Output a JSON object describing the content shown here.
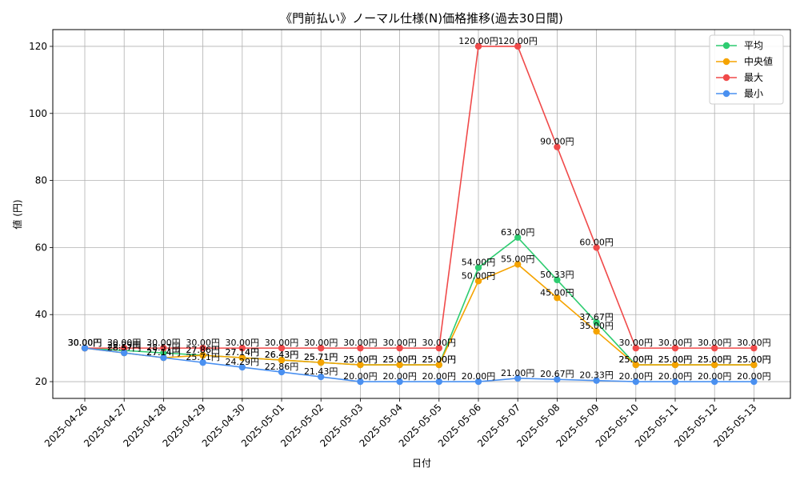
{
  "chart_data": {
    "type": "line",
    "title": "《門前払い》ノーマル仕様(N)価格推移(過去30日間)",
    "xlabel": "日付",
    "ylabel": "値 (円)",
    "ylim": [
      15,
      125
    ],
    "yticks": [
      20,
      40,
      60,
      80,
      100,
      120
    ],
    "grid": true,
    "legend_position": "top-right",
    "value_suffix": "円",
    "categories": [
      "2025-04-26",
      "2025-04-27",
      "2025-04-28",
      "2025-04-29",
      "2025-04-30",
      "2025-05-01",
      "2025-05-02",
      "2025-05-03",
      "2025-05-04",
      "2025-05-05",
      "2025-05-06",
      "2025-05-07",
      "2025-05-08",
      "2025-05-09",
      "2025-05-10",
      "2025-05-11",
      "2025-05-12",
      "2025-05-13"
    ],
    "series": [
      {
        "name": "平均",
        "color": "#2ecc71",
        "values": [
          30.0,
          29.29,
          28.57,
          27.86,
          27.14,
          26.43,
          25.71,
          25.0,
          25.0,
          25.0,
          54.0,
          63.0,
          50.33,
          37.67,
          25.0,
          25.0,
          25.0,
          25.0
        ]
      },
      {
        "name": "中央値",
        "color": "#f5a300",
        "values": [
          30.0,
          28.57,
          27.14,
          27.86,
          27.14,
          26.43,
          25.71,
          25.0,
          25.0,
          25.0,
          50.0,
          55.0,
          45.0,
          35.0,
          25.0,
          25.0,
          25.0,
          25.0
        ]
      },
      {
        "name": "最大",
        "color": "#f04a4a",
        "values": [
          30.0,
          30.0,
          30.0,
          30.0,
          30.0,
          30.0,
          30.0,
          30.0,
          30.0,
          30.0,
          120.0,
          120.0,
          90.0,
          60.0,
          30.0,
          30.0,
          30.0,
          30.0
        ]
      },
      {
        "name": "最小",
        "color": "#4a90f0",
        "values": [
          30.0,
          28.57,
          27.14,
          25.71,
          24.29,
          22.86,
          21.43,
          20.0,
          20.0,
          20.0,
          20.0,
          21.0,
          20.67,
          20.33,
          20.0,
          20.0,
          20.0,
          20.0
        ]
      }
    ]
  }
}
